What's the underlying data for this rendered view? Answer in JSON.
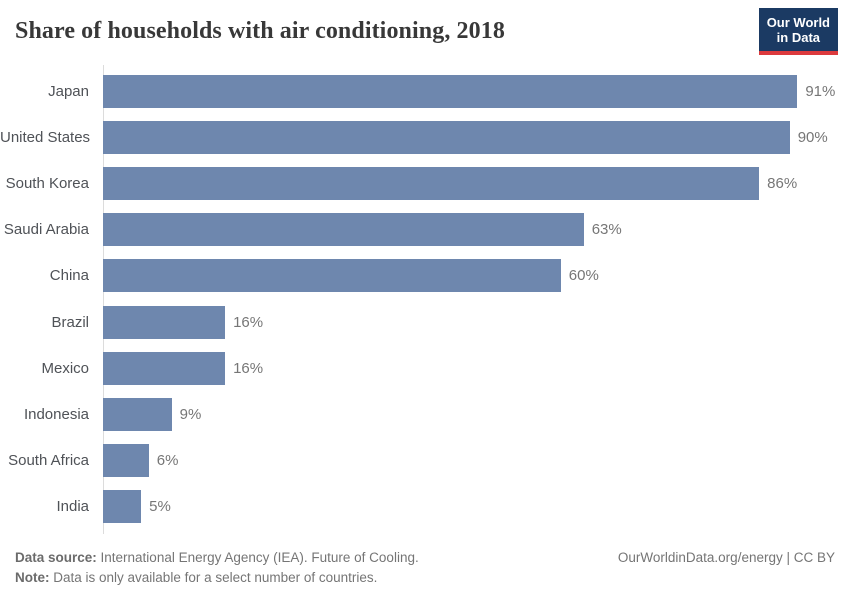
{
  "header": {
    "title": "Share of households with air conditioning, 2018",
    "logo": {
      "line1": "Our World",
      "line2": "in Data"
    }
  },
  "chart_data": {
    "type": "bar",
    "orientation": "horizontal",
    "title": "Share of households with air conditioning, 2018",
    "categories": [
      "Japan",
      "United States",
      "South Korea",
      "Saudi Arabia",
      "China",
      "Brazil",
      "Mexico",
      "Indonesia",
      "South Africa",
      "India"
    ],
    "values": [
      91,
      90,
      86,
      63,
      60,
      16,
      16,
      9,
      6,
      5
    ],
    "value_suffix": "%",
    "xlabel": "",
    "ylabel": "",
    "xlim": [
      0,
      100
    ],
    "grid": false,
    "legend": false,
    "bar_color": "#6e87ae"
  },
  "footer": {
    "source_label": "Data source:",
    "source_text": " International Energy Agency (IEA). Future of Cooling.",
    "note_label": "Note:",
    "note_text": " Data is only available for a select number of countries.",
    "link": "OurWorldinData.org/energy | CC BY"
  },
  "colors": {
    "bar": "#6e87ae",
    "logo_bg": "#1b3a63",
    "logo_accent": "#dc3a3d",
    "axis_line": "#dcdcdc"
  }
}
